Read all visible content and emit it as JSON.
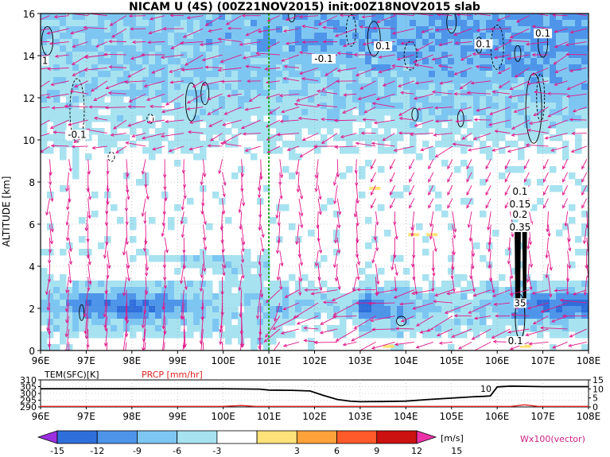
{
  "title": "NICAM  U  (4S)  (00Z21NOV2015)  init:00Z18NOV2015  slab",
  "colors": {
    "frame": "#000000",
    "vector": "#e0198a",
    "green_line": "#22aa22",
    "prcp": "#dd2222",
    "shade_light": "#a7e2f0",
    "shade_mid": "#7ec6f2",
    "shade_dark": "#4e95ea",
    "shade_darkest": "#2f6fdc"
  },
  "chart_data": [
    {
      "type": "heatmap",
      "title": "NICAM  U  (4S)  (00Z21NOV2015)  init:00Z18NOV2015  slab",
      "xlabel": "",
      "ylabel": "ALTITUDE  [km]",
      "x_ticks": [
        "96E",
        "97E",
        "98E",
        "99E",
        "100E",
        "101E",
        "102E",
        "103E",
        "104E",
        "105E",
        "106E",
        "107E",
        "108E"
      ],
      "y_ticks": [
        "0",
        "2",
        "4",
        "6",
        "8",
        "10",
        "12",
        "14",
        "16"
      ],
      "xlim": [
        96,
        108
      ],
      "ylim": [
        0,
        16
      ],
      "variable": "U",
      "unit": "m/s",
      "overlay": "vectors",
      "green_dashed_longitude": 101,
      "contour_labels": [
        {
          "text": "1",
          "lon": 96.1,
          "alt": 13.6
        },
        {
          "text": "0.1",
          "lon": 103.5,
          "alt": 14.3
        },
        {
          "text": "-0.1",
          "lon": 102.2,
          "alt": 13.7
        },
        {
          "text": "0.1",
          "lon": 105.7,
          "alt": 14.4
        },
        {
          "text": "0.1",
          "lon": 107.0,
          "alt": 14.9
        },
        {
          "text": "-0.1",
          "lon": 96.8,
          "alt": 10.1
        },
        {
          "text": "0.1",
          "lon": 106.5,
          "alt": 7.4
        },
        {
          "text": "0.15",
          "lon": 106.5,
          "alt": 6.8
        },
        {
          "text": "0.2",
          "lon": 106.5,
          "alt": 6.3
        },
        {
          "text": "0.35",
          "lon": 106.5,
          "alt": 5.7
        },
        {
          "text": "35",
          "lon": 106.5,
          "alt": 2.1
        },
        {
          "text": "0.1",
          "lon": 106.4,
          "alt": 0.3
        }
      ]
    },
    {
      "type": "line",
      "title": "",
      "left_label": "TEM(SFC)[K]",
      "right_label": "PRCP [mm/hr]",
      "x_ticks": [
        "96E",
        "97E",
        "98E",
        "99E",
        "100E",
        "101E",
        "102E",
        "103E",
        "104E",
        "105E",
        "106E",
        "107E",
        "108E"
      ],
      "xlim": [
        96,
        108
      ],
      "y_left_ticks": [
        "290",
        "295",
        "300",
        "305",
        "310"
      ],
      "y_left_range": [
        290,
        310
      ],
      "y_right_ticks": [
        "0",
        "5",
        "10",
        "15"
      ],
      "y_right_range": [
        0,
        15
      ],
      "annotation": "10",
      "series": [
        {
          "name": "TEM(SFC)[K]",
          "x": [
            96,
            97,
            98,
            99,
            100,
            100.8,
            101,
            101.5,
            101.9,
            102.2,
            102.5,
            102.8,
            103.0,
            103.5,
            104.0,
            104.5,
            105.0,
            105.5,
            105.7,
            105.85,
            106.0,
            106.3,
            107.0,
            107.5,
            108.0
          ],
          "y": [
            303.5,
            303.5,
            303.5,
            303.5,
            303.5,
            303.2,
            302.5,
            302.3,
            301.8,
            298.5,
            295.5,
            294.2,
            293.9,
            294.0,
            294.3,
            295.5,
            296.5,
            297.6,
            297.8,
            298.2,
            304.8,
            305.4,
            305.0,
            305.0,
            305.0
          ]
        },
        {
          "name": "PRCP [mm/hr]",
          "x": [
            96,
            100,
            100.4,
            100.7,
            101,
            106.3,
            106.6,
            106.9,
            108
          ],
          "y": [
            0.3,
            0.3,
            0.8,
            0.3,
            0.3,
            0.3,
            1.2,
            0.3,
            0.3
          ]
        }
      ]
    },
    {
      "type": "colorbar",
      "levels": [
        "-15",
        "-12",
        "-9",
        "-6",
        "-3",
        "3",
        "6",
        "9",
        "12",
        "15"
      ],
      "unit": "[m/s]",
      "colors": [
        "#9b30e0",
        "#2f6fdc",
        "#4e95ea",
        "#7ec6f2",
        "#a7e2f0",
        "#ffffff",
        "#ffe27a",
        "#ffa23a",
        "#ff5a2a",
        "#cc1111",
        "#ee33aa"
      ],
      "vector_label": "Wx100(vector)"
    }
  ]
}
